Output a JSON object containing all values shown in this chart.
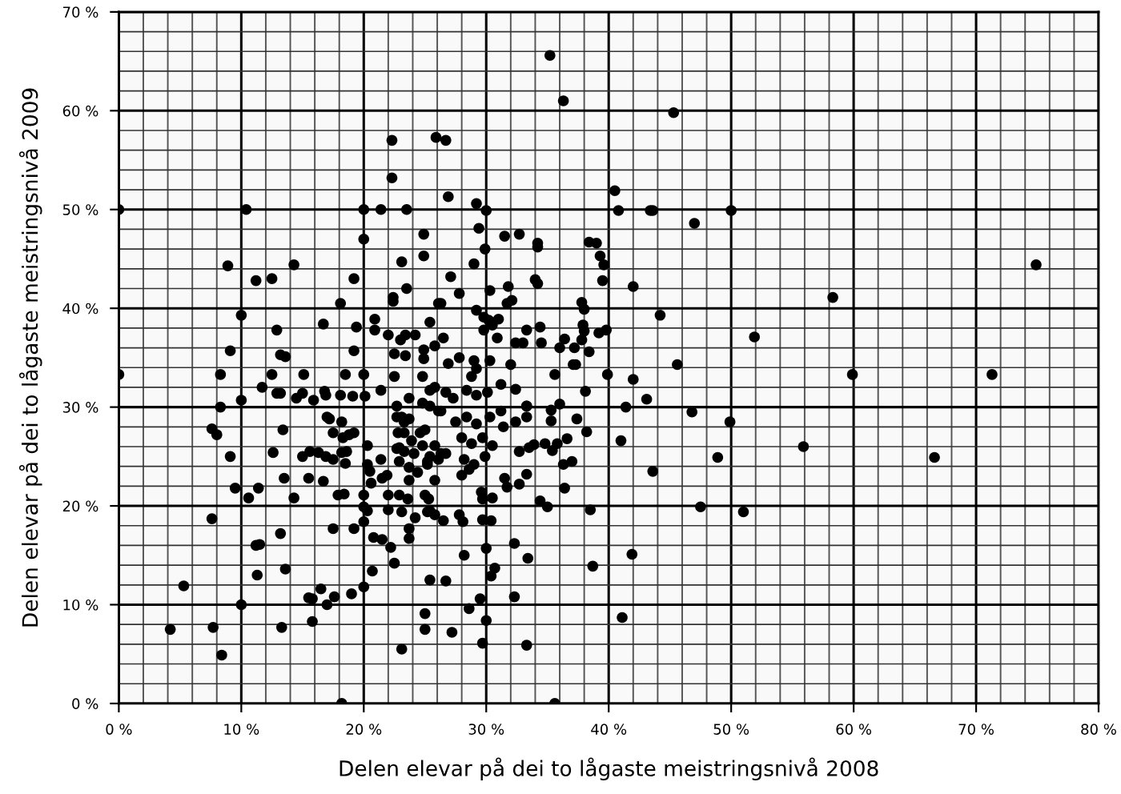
{
  "chart_data": {
    "type": "scatter",
    "xlabel": "Delen elevar på dei to lågaste meistringsnivå 2008",
    "ylabel": "Delen elevar på dei to lågaste meistringsnivå 2009",
    "xlim": [
      0,
      80
    ],
    "ylim": [
      0,
      70
    ],
    "xticks": [
      {
        "value": 0,
        "label": "0 %"
      },
      {
        "value": 10,
        "label": "10 %"
      },
      {
        "value": 20,
        "label": "20 %"
      },
      {
        "value": 30,
        "label": "30 %"
      },
      {
        "value": 40,
        "label": "40 %"
      },
      {
        "value": 50,
        "label": "50 %"
      },
      {
        "value": 60,
        "label": "60 %"
      },
      {
        "value": 70,
        "label": "70 %"
      },
      {
        "value": 80,
        "label": "80 %"
      }
    ],
    "yticks": [
      {
        "value": 0,
        "label": "0 %"
      },
      {
        "value": 10,
        "label": "10 %"
      },
      {
        "value": 20,
        "label": "20 %"
      },
      {
        "value": 30,
        "label": "30 %"
      },
      {
        "value": 40,
        "label": "40 %"
      },
      {
        "value": 50,
        "label": "50 %"
      },
      {
        "value": 60,
        "label": "60 %"
      },
      {
        "value": 70,
        "label": "70 %"
      }
    ],
    "grid": true,
    "marker": "circle",
    "series": [
      {
        "color": "#000000",
        "x": [
          0,
          10.4,
          22.3,
          22.3,
          25.9,
          26.7,
          20.0,
          21.4,
          23.5,
          20.0,
          24.9,
          24.9,
          23.1,
          23.5,
          22.4,
          22.4,
          8.9,
          14.3,
          11.2,
          12.5,
          19.2,
          18.1,
          26.1,
          10.0,
          16.7,
          12.9,
          19.4,
          20.9,
          20.9,
          22.0,
          23.0,
          23.4,
          24.2,
          25.4,
          25.8,
          9.1,
          13.2,
          13.6,
          19.2,
          22.5,
          23.4,
          24.9,
          24.9,
          35.2,
          36.3,
          45.3,
          26.9,
          29.2,
          30.0,
          29.4,
          31.5,
          32.7,
          34.2,
          34.2,
          29.9,
          29.0,
          27.1,
          27.8,
          30.3,
          31.8,
          34.0,
          34.2,
          31.7,
          32.1,
          26.3,
          29.2,
          29.8,
          30.2,
          31.0,
          29.8,
          30.5,
          26.5,
          30.9,
          32.4,
          33.0,
          33.3,
          34.4,
          34.5,
          36.0,
          36.4,
          37.8,
          38.0,
          37.9,
          38.0,
          37.2,
          37.3,
          38.4,
          37.8,
          39.2,
          39.8,
          38.4,
          39.0,
          39.3,
          39.6,
          39.5,
          40.5,
          40.8,
          43.4,
          43.6,
          47.0,
          50.0,
          42.0,
          44.2,
          51.9,
          45.6,
          74.9,
          58.3,
          59.9,
          71.3,
          55.9,
          66.6,
          0,
          8.3,
          11.7,
          12.5,
          12.9,
          13.2,
          15.1,
          14.5,
          15.0,
          15.9,
          16.8,
          16.9,
          18.5,
          20.0,
          18.1,
          19.1,
          20.1,
          21.4,
          22.5,
          8.3,
          10.0,
          7.6,
          8.0,
          9.1,
          9.5,
          10.6,
          11.4,
          13.4,
          12.6,
          13.5,
          14.3,
          15.0,
          15.6,
          16.3,
          16.9,
          17.5,
          15.5,
          16.7,
          17.0,
          17.2,
          17.5,
          18.3,
          18.8,
          19.2,
          18.2,
          18.2,
          18.6,
          18.5,
          20.3,
          20.3,
          20.5,
          20.6,
          21.4,
          21.5,
          21.9,
          22.7,
          22.8,
          22.9,
          23.3,
          17.9,
          18.4,
          20.0,
          20.0,
          20.3,
          20.0,
          17.5,
          19.2,
          20.8,
          21.5,
          22.2,
          22.5,
          23.7,
          23.7,
          22.0,
          22.9,
          23.6,
          22.0,
          23.1,
          24.2,
          25.0,
          25.3,
          25.2,
          25.8,
          7.6,
          11.2,
          11.5,
          13.2,
          13.6,
          11.3,
          5.3,
          10.0,
          4.2,
          7.7,
          8.4,
          13.3,
          15.5,
          15.8,
          15.8,
          16.5,
          17.0,
          17.6,
          19.0,
          20.0,
          20.7,
          18.2,
          25.0,
          25.0,
          23.1,
          25.4,
          23.1,
          23.7,
          23.3,
          23.9,
          24.6,
          25.0,
          22.7,
          23.3,
          24.1,
          24.8,
          25.4,
          26.1,
          22.9,
          23.7,
          24.4,
          25.2,
          23.7,
          25.8,
          22.7,
          23.7,
          24.8,
          25.4,
          24.8,
          26.1,
          35.6,
          30.0,
          29.7,
          33.3,
          27.2,
          28.6,
          29.5,
          32.3,
          41.1,
          26.7,
          30.4,
          30.7,
          28.2,
          30.0,
          32.3,
          33.4,
          38.7,
          41.9,
          25.4,
          26.5,
          27.8,
          28.1,
          29.7,
          30.4,
          29.6,
          29.7,
          30.5,
          31.5,
          31.7,
          32.7,
          33.3,
          34.4,
          35.0,
          36.4,
          38.5,
          47.5,
          51.0,
          43.6,
          48.9,
          41.0,
          38.2,
          37.4,
          38.1,
          39.9,
          42.0,
          41.4,
          43.1,
          46.8,
          49.9,
          35.6,
          37.1,
          32.0,
          35.3,
          36.0,
          35.3,
          33.9,
          34.8,
          35.4,
          35.8,
          36.6,
          36.3,
          37.0,
          33.5,
          33.3,
          33.3,
          32.4,
          26.9,
          27.8,
          29.0,
          29.2,
          28.8,
          30.3,
          25.8,
          26.7,
          27.3,
          28.4,
          29.2,
          30.1,
          31.2,
          25.4,
          26.3,
          27.5,
          28.4,
          29.2,
          30.3,
          31.2,
          31.4,
          25.8,
          26.7,
          28.0,
          28.8,
          29.7,
          30.5,
          28.2,
          29.0,
          29.9,
          28.0,
          28.6,
          25.2,
          26.3,
          32.4,
          33.3,
          32.7
        ],
        "values": [
          50,
          50,
          57.0,
          53.2,
          57.3,
          57.0,
          50,
          50,
          50,
          47.0,
          47.5,
          45.3,
          44.7,
          42.0,
          41.1,
          40.7,
          44.3,
          44.4,
          42.8,
          43.0,
          43.0,
          40.5,
          40.5,
          39.3,
          38.4,
          37.8,
          38.1,
          38.9,
          37.8,
          37.3,
          36.8,
          37.3,
          37.3,
          38.6,
          36.2,
          35.7,
          35.3,
          35.1,
          35.7,
          35.4,
          35.2,
          35.8,
          34.9,
          65.6,
          61.0,
          59.8,
          51.3,
          50.6,
          49.9,
          48.1,
          47.3,
          47.5,
          46.6,
          46.2,
          46.0,
          44.5,
          43.2,
          41.5,
          41.8,
          42.2,
          42.9,
          42.5,
          40.5,
          40.8,
          40.5,
          39.8,
          39.1,
          38.8,
          38.9,
          37.8,
          38.3,
          37.0,
          37.0,
          36.5,
          36.5,
          37.8,
          38.1,
          36.5,
          36.0,
          36.9,
          40.6,
          39.9,
          38.3,
          37.7,
          36.0,
          34.3,
          35.6,
          36.8,
          37.5,
          37.8,
          46.7,
          46.6,
          45.3,
          44.4,
          42.8,
          51.9,
          49.9,
          49.9,
          49.9,
          48.6,
          49.9,
          42.2,
          39.3,
          37.1,
          34.3,
          44.4,
          41.1,
          33.3,
          33.3,
          26.0,
          24.9,
          33.3,
          33.3,
          32.0,
          33.3,
          31.4,
          31.4,
          33.3,
          30.9,
          31.4,
          30.7,
          31.6,
          31.2,
          33.3,
          33.3,
          31.2,
          31.1,
          31.1,
          31.7,
          33.1,
          30.0,
          30.7,
          27.8,
          27.2,
          25.0,
          21.8,
          20.8,
          21.8,
          27.7,
          25.4,
          22.8,
          20.8,
          25.0,
          25.5,
          25.4,
          25.0,
          24.7,
          22.8,
          22.5,
          29.0,
          28.8,
          27.4,
          26.9,
          27.2,
          27.4,
          28.5,
          25.4,
          25.5,
          24.3,
          26.1,
          24.2,
          23.5,
          22.3,
          24.7,
          22.8,
          23.1,
          29.0,
          27.4,
          25.9,
          28.5,
          21.1,
          21.2,
          21.1,
          19.9,
          19.5,
          18.4,
          17.7,
          17.7,
          16.8,
          16.6,
          15.8,
          14.2,
          17.7,
          16.7,
          21.1,
          21.1,
          20.7,
          19.6,
          19.4,
          18.8,
          21.1,
          20.7,
          19.4,
          19.1,
          18.7,
          16.0,
          16.1,
          17.2,
          13.6,
          13.0,
          11.9,
          10.0,
          7.5,
          7.7,
          4.9,
          7.7,
          10.7,
          10.6,
          8.3,
          11.6,
          10.0,
          10.8,
          11.1,
          11.8,
          13.4,
          0,
          9.1,
          7.5,
          5.5,
          12.5,
          29.0,
          28.8,
          27.4,
          26.6,
          27.4,
          27.7,
          25.8,
          25.5,
          25.3,
          26.1,
          25.0,
          24.7,
          24.5,
          23.9,
          23.4,
          24.2,
          22.6,
          22.6,
          30.1,
          30.9,
          30.4,
          31.7,
          33.1,
          29.6,
          0,
          8.4,
          6.1,
          5.9,
          7.2,
          9.6,
          10.6,
          10.8,
          8.7,
          12.4,
          12.9,
          13.7,
          15.0,
          15.7,
          16.2,
          14.7,
          13.9,
          15.1,
          19.5,
          18.5,
          19.1,
          18.4,
          18.6,
          18.5,
          21.4,
          20.7,
          20.8,
          22.8,
          21.9,
          22.2,
          23.2,
          20.5,
          19.9,
          21.8,
          19.6,
          19.9,
          19.4,
          23.5,
          24.9,
          26.6,
          27.5,
          28.8,
          31.6,
          33.3,
          32.8,
          30.0,
          30.8,
          29.5,
          28.5,
          33.3,
          34.3,
          34.3,
          29.7,
          30.3,
          28.6,
          26.2,
          26.3,
          25.6,
          26.3,
          26.8,
          24.2,
          24.5,
          25.9,
          29.0,
          30.1,
          31.8,
          34.4,
          35.0,
          34.7,
          33.9,
          33.1,
          34.7,
          32.0,
          31.5,
          30.9,
          31.7,
          31.2,
          31.5,
          32.3,
          30.1,
          29.6,
          28.5,
          29.0,
          28.3,
          29.0,
          29.6,
          28.0,
          26.1,
          25.3,
          26.9,
          26.3,
          26.9,
          26.1,
          24.7,
          24.2,
          25.0,
          23.1,
          23.7,
          24.5,
          25.3,
          28.5,
          30.1,
          25.5
        ]
      }
    ]
  }
}
